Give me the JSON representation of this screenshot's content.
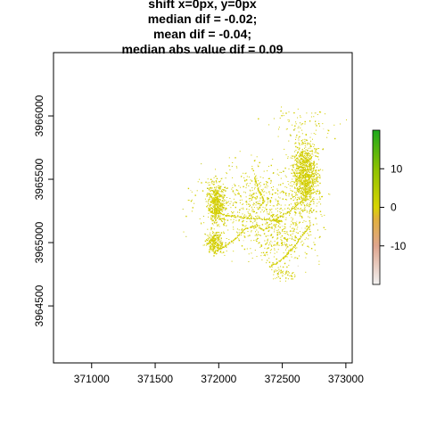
{
  "chart_data": {
    "type": "heatmap",
    "title_lines": [
      "shift x=0px, y=0px",
      "median dif = -0.02;",
      "mean dif = -0.04;",
      "median abs value dif = 0.09"
    ],
    "xlabel": "",
    "ylabel": "",
    "xlim": [
      370700,
      373050
    ],
    "ylim": [
      3964050,
      3966500
    ],
    "x_ticks": [
      {
        "value": 371000,
        "label": "371000"
      },
      {
        "value": 371500,
        "label": "371500"
      },
      {
        "value": 372000,
        "label": "372000"
      },
      {
        "value": 372500,
        "label": "372500"
      },
      {
        "value": 373000,
        "label": "373000"
      }
    ],
    "y_ticks": [
      {
        "value": 3964500,
        "label": "3964500"
      },
      {
        "value": 3965000,
        "label": "3965000"
      },
      {
        "value": 3965500,
        "label": "3965500"
      },
      {
        "value": 3966000,
        "label": "3966000"
      }
    ],
    "grid": false,
    "legend": {
      "placement": "right",
      "range": [
        -20,
        20
      ],
      "ticks": [
        {
          "value": 10,
          "label": "10"
        },
        {
          "value": 0,
          "label": "0"
        },
        {
          "value": -10,
          "label": "-10"
        }
      ],
      "color_stops": [
        {
          "value": -20,
          "color": "#f2f2f2"
        },
        {
          "value": -10,
          "color": "#dfa58e"
        },
        {
          "value": -3,
          "color": "#e1b03c"
        },
        {
          "value": 0,
          "color": "#d8d400"
        },
        {
          "value": 10,
          "color": "#8dc200"
        },
        {
          "value": 20,
          "color": "#1ca81c"
        }
      ]
    },
    "dominant_value": -0.02,
    "dominant_color": "#d4cf00",
    "lines": [
      [
        [
          371930,
          3965250
        ],
        [
          372050,
          3965220
        ],
        [
          372200,
          3965200
        ],
        [
          372350,
          3965190
        ],
        [
          372500,
          3965170
        ]
      ],
      [
        [
          372350,
          3965100
        ],
        [
          372300,
          3965140
        ],
        [
          372200,
          3965110
        ],
        [
          372120,
          3965030
        ],
        [
          372050,
          3964980
        ],
        [
          371950,
          3964920
        ]
      ],
      [
        [
          372720,
          3965140
        ],
        [
          372650,
          3965060
        ],
        [
          372580,
          3964960
        ],
        [
          372480,
          3964860
        ],
        [
          372390,
          3964810
        ]
      ],
      [
        [
          372650,
          3965330
        ],
        [
          372550,
          3965250
        ],
        [
          372420,
          3965180
        ]
      ],
      [
        [
          371920,
          3965390
        ],
        [
          371960,
          3965320
        ],
        [
          371980,
          3965250
        ],
        [
          371960,
          3965150
        ]
      ],
      [
        [
          372280,
          3965520
        ],
        [
          372310,
          3965420
        ],
        [
          372350,
          3965330
        ],
        [
          372300,
          3965260
        ]
      ]
    ],
    "clusters": [
      {
        "center": [
          372680,
          3965530
        ],
        "spread": [
          90,
          220
        ],
        "count": 1100
      },
      {
        "center": [
          371980,
          3965320
        ],
        "spread": [
          60,
          150
        ],
        "count": 420
      },
      {
        "center": [
          371970,
          3965010
        ],
        "spread": [
          70,
          80
        ],
        "count": 260
      },
      {
        "center": [
          372300,
          3965300
        ],
        "spread": [
          420,
          300
        ],
        "count": 700
      },
      {
        "center": [
          372480,
          3965050
        ],
        "spread": [
          250,
          200
        ],
        "count": 300
      },
      {
        "center": [
          372650,
          3965950
        ],
        "spread": [
          250,
          120
        ],
        "count": 80
      },
      {
        "center": [
          372500,
          3964760
        ],
        "spread": [
          80,
          60
        ],
        "count": 60
      }
    ]
  }
}
